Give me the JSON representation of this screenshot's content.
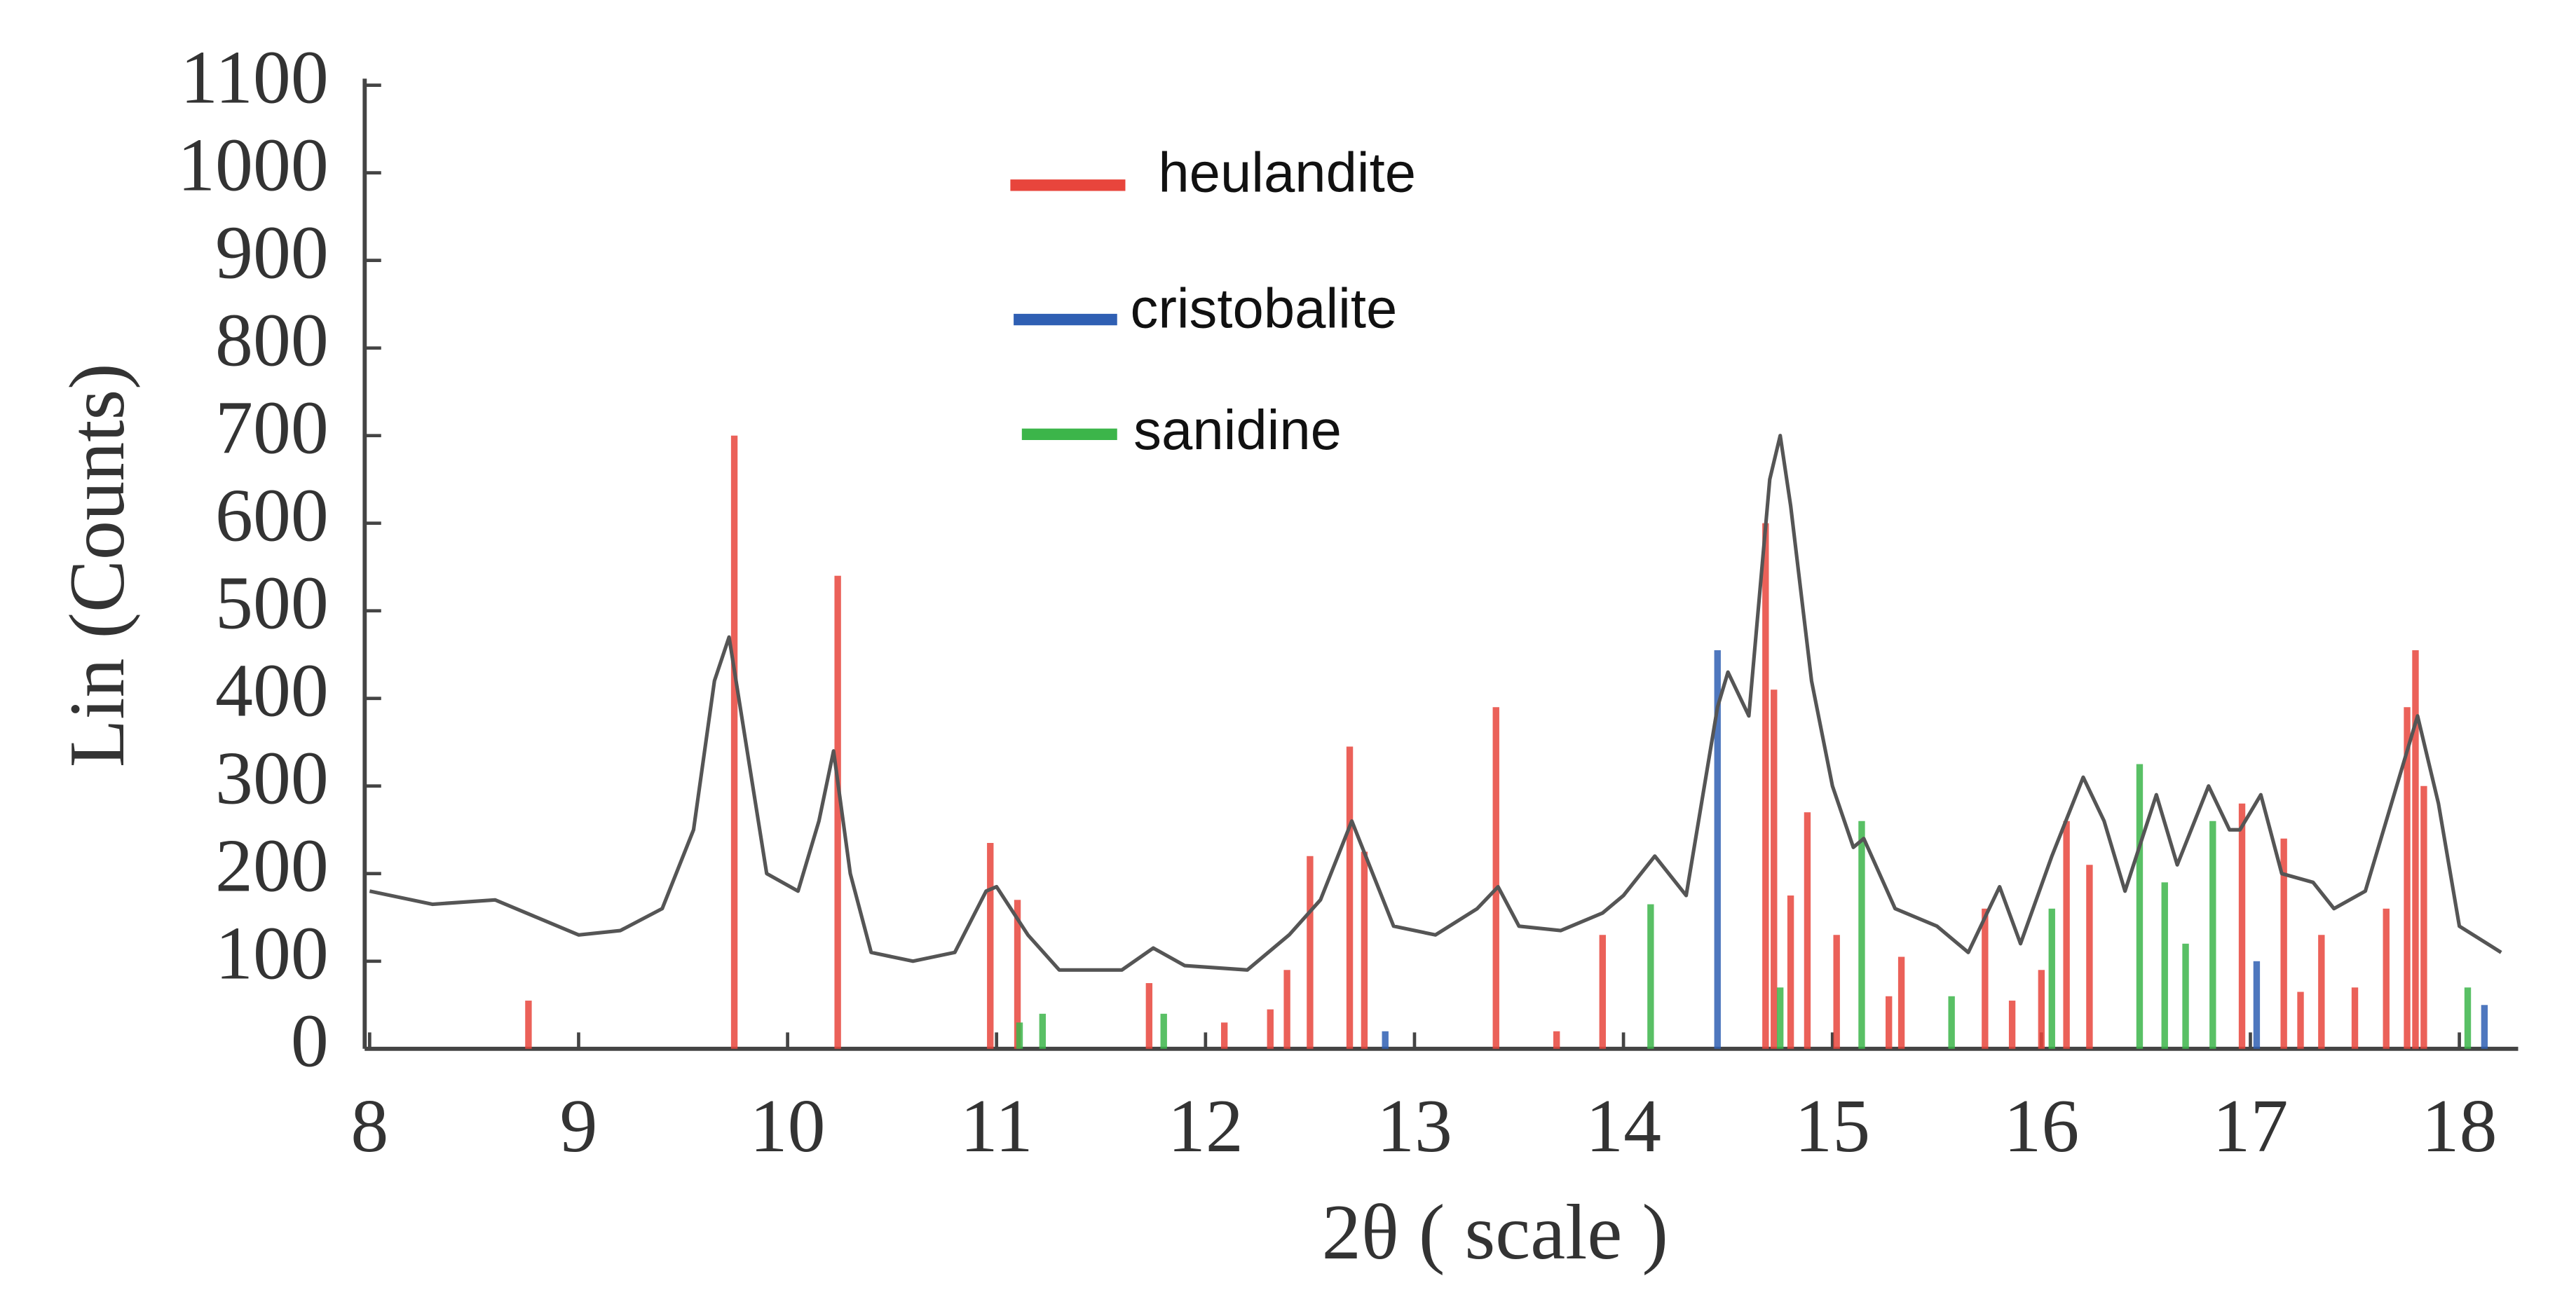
{
  "chart_data": {
    "type": "line",
    "x_label": "2θ ( scale )",
    "y_label": "Lin (Counts)",
    "xlim": [
      8,
      18.25
    ],
    "ylim": [
      0,
      1100
    ],
    "xticks": [
      8,
      9,
      10,
      11,
      12,
      13,
      14,
      15,
      16,
      17,
      18
    ],
    "yticks": [
      0,
      100,
      200,
      300,
      400,
      500,
      600,
      700,
      800,
      900,
      1000,
      1100
    ],
    "series": [
      {
        "type": "line",
        "color": "#555555",
        "x": [
          8.0,
          8.3,
          8.6,
          8.8,
          9.0,
          9.2,
          9.4,
          9.55,
          9.65,
          9.72,
          9.8,
          9.9,
          10.05,
          10.15,
          10.22,
          10.3,
          10.4,
          10.6,
          10.8,
          10.95,
          11.0,
          11.15,
          11.3,
          11.6,
          11.75,
          11.9,
          12.2,
          12.4,
          12.55,
          12.7,
          12.8,
          12.9,
          13.1,
          13.3,
          13.4,
          13.5,
          13.7,
          13.9,
          14.0,
          14.15,
          14.3,
          14.45,
          14.5,
          14.6,
          14.7,
          14.75,
          14.8,
          14.9,
          15.0,
          15.1,
          15.15,
          15.3,
          15.5,
          15.65,
          15.8,
          15.9,
          16.05,
          16.2,
          16.3,
          16.4,
          16.55,
          16.65,
          16.8,
          16.9,
          16.95,
          17.05,
          17.15,
          17.3,
          17.4,
          17.55,
          17.8,
          17.9,
          18.0,
          18.2
        ],
        "values": [
          180,
          165,
          170,
          150,
          130,
          135,
          160,
          250,
          420,
          470,
          350,
          200,
          180,
          260,
          340,
          200,
          110,
          100,
          110,
          180,
          185,
          130,
          90,
          90,
          115,
          95,
          90,
          130,
          170,
          260,
          200,
          140,
          130,
          160,
          185,
          140,
          135,
          155,
          175,
          220,
          175,
          390,
          430,
          380,
          650,
          700,
          620,
          420,
          300,
          230,
          240,
          160,
          140,
          110,
          185,
          120,
          220,
          310,
          260,
          180,
          290,
          210,
          300,
          250,
          250,
          290,
          200,
          190,
          160,
          180,
          380,
          280,
          140,
          110
        ]
      },
      {
        "type": "bar",
        "name": "heulandite",
        "color": "#e8453c",
        "x": [
          8.76,
          9.745,
          10.24,
          10.97,
          11.1,
          11.73,
          12.09,
          12.31,
          12.39,
          12.5,
          12.69,
          12.76,
          13.39,
          13.68,
          13.9,
          14.68,
          14.72,
          14.8,
          14.88,
          15.02,
          15.27,
          15.33,
          15.73,
          15.86,
          16.0,
          16.12,
          16.23,
          16.96,
          17.16,
          17.24,
          17.34,
          17.5,
          17.65,
          17.75,
          17.79,
          17.83
        ],
        "values": [
          55,
          700,
          540,
          235,
          170,
          75,
          30,
          45,
          90,
          220,
          345,
          225,
          390,
          20,
          130,
          600,
          410,
          175,
          270,
          130,
          60,
          105,
          160,
          55,
          90,
          260,
          210,
          280,
          240,
          65,
          130,
          70,
          160,
          390,
          455,
          300
        ]
      },
      {
        "type": "bar",
        "name": "cristobalite",
        "color": "#2f5fb3",
        "x": [
          12.86,
          14.45,
          17.03,
          18.12
        ],
        "values": [
          20,
          455,
          100,
          50
        ]
      },
      {
        "type": "bar",
        "name": "sanidine",
        "color": "#3cb54a",
        "x": [
          11.11,
          11.22,
          11.8,
          14.13,
          14.75,
          15.14,
          15.57,
          16.05,
          16.47,
          16.59,
          16.69,
          16.82,
          18.04
        ],
        "values": [
          30,
          40,
          40,
          165,
          70,
          260,
          60,
          160,
          325,
          190,
          120,
          260,
          70
        ]
      }
    ]
  }
}
